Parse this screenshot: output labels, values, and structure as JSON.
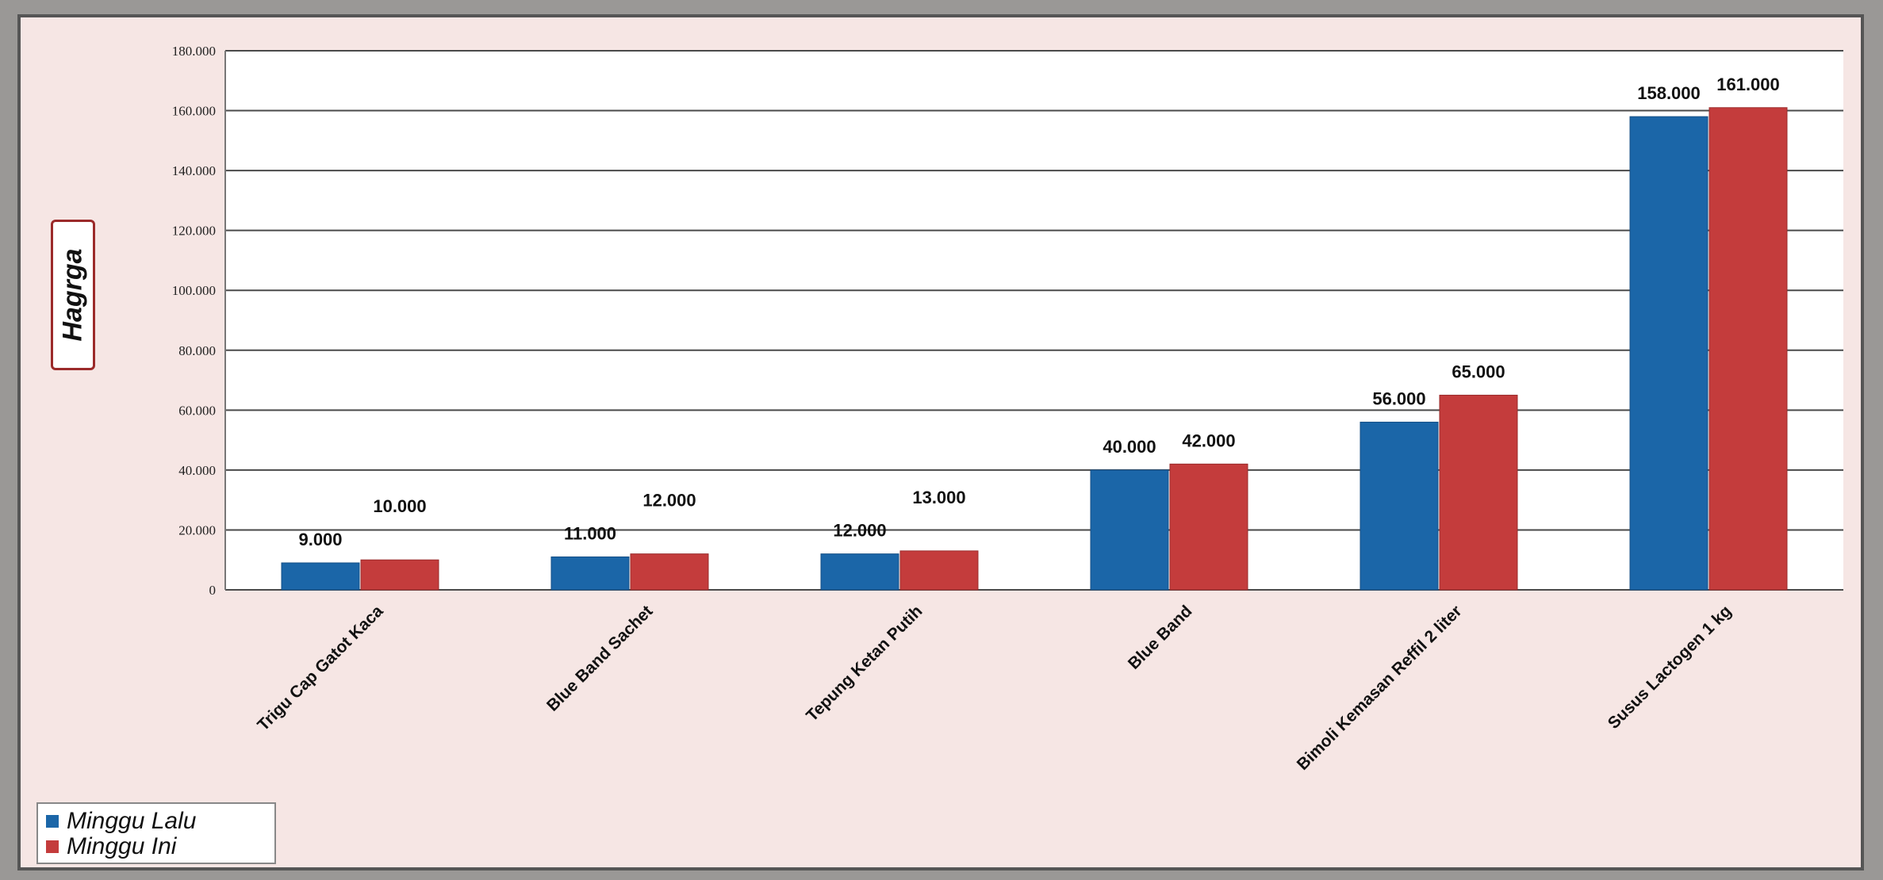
{
  "chart_data": {
    "type": "bar",
    "categories": [
      "Trigu Cap Gatot Kaca",
      "Blue Band Sachet",
      "Tepung Ketan Putih",
      "Blue Band",
      "Bimoli Kemasan Reffil 2 liter",
      "Susus Lactogen 1 kg"
    ],
    "series": [
      {
        "name": "Minggu Lalu",
        "color": "#1b66a8",
        "values": [
          9000,
          11000,
          12000,
          40000,
          56000,
          158000
        ],
        "labels": [
          "9.000",
          "11.000",
          "12.000",
          "40.000",
          "56.000",
          "158.000"
        ]
      },
      {
        "name": "Minggu Ini",
        "color": "#c43c3c",
        "values": [
          10000,
          12000,
          13000,
          42000,
          65000,
          161000
        ],
        "labels": [
          "10.000",
          "12.000",
          "13.000",
          "42.000",
          "65.000",
          "161.000"
        ]
      }
    ],
    "ylabel": "Hagrga",
    "ylim": [
      0,
      180000
    ],
    "yticks": [
      0,
      20000,
      40000,
      60000,
      80000,
      100000,
      120000,
      140000,
      160000,
      180000
    ],
    "ytick_labels": [
      "0",
      "20.000",
      "40.000",
      "60.000",
      "80.000",
      "100.000",
      "120.000",
      "140.000",
      "160.000",
      "180.000"
    ],
    "grid": true,
    "legend_position": "bottom-left"
  }
}
